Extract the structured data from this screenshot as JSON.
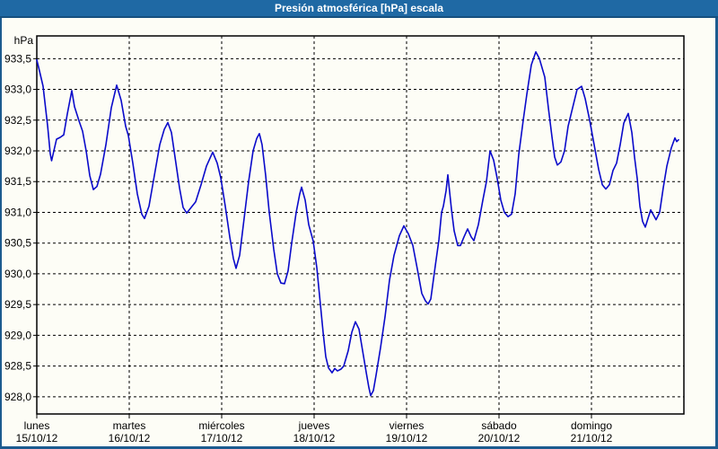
{
  "window": {
    "title": "Presión atmosférica [hPa] escala"
  },
  "colors": {
    "titlebar": "#1F69A4",
    "titlebar_edge": "#16507F",
    "frame": "#1C5B8F",
    "content_bg": "#FDFDF6",
    "grid": "#000000",
    "line": "#0A0ACA",
    "title_text": "#FFFFFF"
  },
  "chart_data": {
    "type": "line",
    "title": "Presión atmosférica [hPa] escala",
    "xlabel": "",
    "ylabel": "hPa",
    "ylim": [
      927.72,
      933.87
    ],
    "x_days": 7,
    "grid": "dashed",
    "legend_position": "none",
    "y_ticks": [
      {
        "label": "933,5",
        "value": 933.5
      },
      {
        "label": "933,0",
        "value": 933.0
      },
      {
        "label": "932,5",
        "value": 932.5
      },
      {
        "label": "932,0",
        "value": 932.0
      },
      {
        "label": "931,5",
        "value": 931.5
      },
      {
        "label": "931,0",
        "value": 931.0
      },
      {
        "label": "930,5",
        "value": 930.5
      },
      {
        "label": "930,0",
        "value": 930.0
      },
      {
        "label": "929,5",
        "value": 929.5
      },
      {
        "label": "929,0",
        "value": 929.0
      },
      {
        "label": "928,5",
        "value": 928.5
      },
      {
        "label": "928,0",
        "value": 928.0
      }
    ],
    "x_categories": [
      {
        "name": "lunes",
        "date": "15/10/12"
      },
      {
        "name": "martes",
        "date": "16/10/12"
      },
      {
        "name": "miércoles",
        "date": "17/10/12"
      },
      {
        "name": "jueves",
        "date": "18/10/12"
      },
      {
        "name": "viernes",
        "date": "19/10/12"
      },
      {
        "name": "sábado",
        "date": "20/10/12"
      },
      {
        "name": "domingo",
        "date": "21/10/12"
      }
    ],
    "series": [
      {
        "name": "Presión atmosférica",
        "color": "#0A0ACA",
        "points": [
          [
            0.0,
            933.48
          ],
          [
            0.029,
            933.3
          ],
          [
            0.068,
            933.05
          ],
          [
            0.117,
            932.4
          ],
          [
            0.146,
            931.95
          ],
          [
            0.16,
            931.84
          ],
          [
            0.184,
            932.0
          ],
          [
            0.214,
            932.19
          ],
          [
            0.252,
            932.22
          ],
          [
            0.291,
            932.26
          ],
          [
            0.33,
            932.6
          ],
          [
            0.379,
            932.98
          ],
          [
            0.408,
            932.72
          ],
          [
            0.456,
            932.49
          ],
          [
            0.495,
            932.32
          ],
          [
            0.534,
            932.0
          ],
          [
            0.573,
            931.6
          ],
          [
            0.612,
            931.37
          ],
          [
            0.65,
            931.42
          ],
          [
            0.689,
            931.62
          ],
          [
            0.748,
            932.1
          ],
          [
            0.806,
            932.7
          ],
          [
            0.864,
            933.07
          ],
          [
            0.913,
            932.82
          ],
          [
            0.961,
            932.4
          ],
          [
            0.99,
            932.25
          ],
          [
            1.039,
            931.8
          ],
          [
            1.087,
            931.3
          ],
          [
            1.136,
            930.97
          ],
          [
            1.165,
            930.9
          ],
          [
            1.214,
            931.1
          ],
          [
            1.272,
            931.6
          ],
          [
            1.33,
            932.1
          ],
          [
            1.379,
            932.35
          ],
          [
            1.417,
            932.46
          ],
          [
            1.456,
            932.3
          ],
          [
            1.495,
            931.9
          ],
          [
            1.544,
            931.4
          ],
          [
            1.583,
            931.08
          ],
          [
            1.621,
            930.99
          ],
          [
            1.67,
            931.08
          ],
          [
            1.718,
            931.17
          ],
          [
            1.777,
            931.45
          ],
          [
            1.835,
            931.75
          ],
          [
            1.903,
            931.98
          ],
          [
            1.951,
            931.8
          ],
          [
            1.99,
            931.56
          ],
          [
            2.039,
            931.1
          ],
          [
            2.087,
            930.6
          ],
          [
            2.126,
            930.25
          ],
          [
            2.155,
            930.09
          ],
          [
            2.194,
            930.3
          ],
          [
            2.243,
            930.9
          ],
          [
            2.291,
            931.5
          ],
          [
            2.34,
            932.0
          ],
          [
            2.379,
            932.2
          ],
          [
            2.408,
            932.28
          ],
          [
            2.437,
            932.1
          ],
          [
            2.476,
            931.6
          ],
          [
            2.515,
            931.0
          ],
          [
            2.563,
            930.4
          ],
          [
            2.602,
            930.0
          ],
          [
            2.641,
            929.85
          ],
          [
            2.68,
            929.84
          ],
          [
            2.718,
            930.05
          ],
          [
            2.757,
            930.5
          ],
          [
            2.806,
            931.0
          ],
          [
            2.845,
            931.3
          ],
          [
            2.864,
            931.41
          ],
          [
            2.903,
            931.2
          ],
          [
            2.942,
            930.8
          ],
          [
            2.99,
            930.53
          ],
          [
            3.029,
            930.1
          ],
          [
            3.068,
            929.5
          ],
          [
            3.097,
            929.05
          ],
          [
            3.126,
            928.65
          ],
          [
            3.155,
            928.47
          ],
          [
            3.194,
            928.39
          ],
          [
            3.223,
            928.46
          ],
          [
            3.252,
            928.42
          ],
          [
            3.291,
            928.45
          ],
          [
            3.32,
            928.5
          ],
          [
            3.369,
            928.75
          ],
          [
            3.408,
            929.05
          ],
          [
            3.447,
            929.22
          ],
          [
            3.485,
            929.1
          ],
          [
            3.524,
            928.75
          ],
          [
            3.563,
            928.4
          ],
          [
            3.592,
            928.15
          ],
          [
            3.612,
            928.02
          ],
          [
            3.641,
            928.1
          ],
          [
            3.67,
            928.35
          ],
          [
            3.718,
            928.8
          ],
          [
            3.767,
            929.3
          ],
          [
            3.816,
            929.9
          ],
          [
            3.864,
            930.3
          ],
          [
            3.922,
            930.62
          ],
          [
            3.971,
            930.78
          ],
          [
            4.019,
            930.65
          ],
          [
            4.068,
            930.46
          ],
          [
            4.117,
            930.07
          ],
          [
            4.165,
            929.68
          ],
          [
            4.204,
            929.56
          ],
          [
            4.233,
            929.51
          ],
          [
            4.262,
            929.59
          ],
          [
            4.311,
            930.13
          ],
          [
            4.35,
            930.56
          ],
          [
            4.379,
            931.0
          ],
          [
            4.398,
            931.1
          ],
          [
            4.427,
            931.35
          ],
          [
            4.447,
            931.61
          ],
          [
            4.485,
            931.05
          ],
          [
            4.515,
            930.7
          ],
          [
            4.553,
            930.46
          ],
          [
            4.583,
            930.46
          ],
          [
            4.621,
            930.6
          ],
          [
            4.66,
            930.73
          ],
          [
            4.699,
            930.6
          ],
          [
            4.728,
            930.54
          ],
          [
            4.777,
            930.8
          ],
          [
            4.825,
            931.2
          ],
          [
            4.864,
            931.5
          ],
          [
            4.903,
            932.0
          ],
          [
            4.942,
            931.85
          ],
          [
            4.981,
            931.55
          ],
          [
            5.019,
            931.2
          ],
          [
            5.058,
            931.0
          ],
          [
            5.097,
            930.93
          ],
          [
            5.136,
            930.97
          ],
          [
            5.175,
            931.3
          ],
          [
            5.214,
            931.94
          ],
          [
            5.262,
            932.5
          ],
          [
            5.301,
            932.92
          ],
          [
            5.35,
            933.4
          ],
          [
            5.398,
            933.61
          ],
          [
            5.437,
            933.5
          ],
          [
            5.495,
            933.2
          ],
          [
            5.534,
            932.7
          ],
          [
            5.573,
            932.23
          ],
          [
            5.602,
            931.9
          ],
          [
            5.631,
            931.77
          ],
          [
            5.67,
            931.82
          ],
          [
            5.709,
            932.0
          ],
          [
            5.748,
            932.4
          ],
          [
            5.796,
            932.7
          ],
          [
            5.845,
            933.0
          ],
          [
            5.893,
            933.05
          ],
          [
            5.932,
            932.85
          ],
          [
            5.981,
            932.5
          ],
          [
            6.029,
            932.1
          ],
          [
            6.078,
            931.7
          ],
          [
            6.117,
            931.45
          ],
          [
            6.155,
            931.38
          ],
          [
            6.194,
            931.45
          ],
          [
            6.233,
            931.68
          ],
          [
            6.272,
            931.8
          ],
          [
            6.311,
            932.1
          ],
          [
            6.35,
            932.45
          ],
          [
            6.398,
            932.61
          ],
          [
            6.437,
            932.3
          ],
          [
            6.466,
            931.9
          ],
          [
            6.495,
            931.55
          ],
          [
            6.524,
            931.1
          ],
          [
            6.553,
            930.85
          ],
          [
            6.583,
            930.76
          ],
          [
            6.612,
            930.9
          ],
          [
            6.641,
            931.04
          ],
          [
            6.67,
            930.96
          ],
          [
            6.699,
            930.88
          ],
          [
            6.738,
            931.0
          ],
          [
            6.777,
            931.4
          ],
          [
            6.816,
            931.75
          ],
          [
            6.864,
            932.05
          ],
          [
            6.903,
            932.21
          ],
          [
            6.922,
            932.15
          ],
          [
            6.942,
            932.18
          ]
        ]
      }
    ]
  }
}
